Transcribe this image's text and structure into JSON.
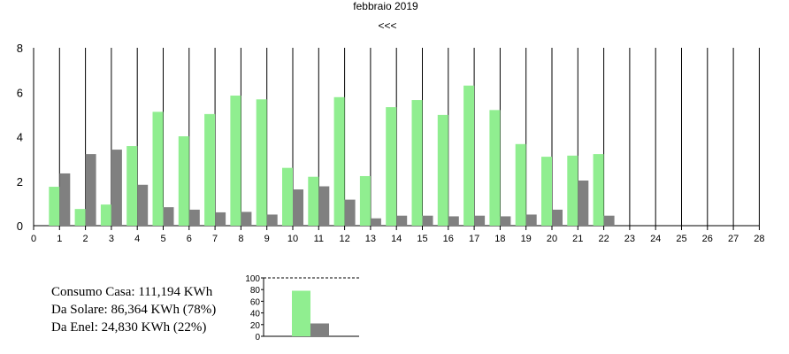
{
  "header": {
    "title": "febbraio 2019",
    "prev_label": "<<<"
  },
  "colors": {
    "solar": "#90ee90",
    "enel": "#808080",
    "axis": "#000000"
  },
  "chart_data": [
    {
      "type": "bar",
      "ylim": [
        0,
        8
      ],
      "y_ticks": [
        0,
        2,
        4,
        6,
        8
      ],
      "x_ticks": [
        0,
        1,
        2,
        3,
        4,
        5,
        6,
        7,
        8,
        9,
        10,
        11,
        12,
        13,
        14,
        15,
        16,
        17,
        18,
        19,
        20,
        21,
        22,
        23,
        24,
        25,
        26,
        27,
        28
      ],
      "categories": [
        1,
        2,
        3,
        4,
        5,
        6,
        7,
        8,
        9,
        10,
        11,
        12,
        13,
        14,
        15,
        16,
        17,
        18,
        19,
        20,
        21,
        22
      ],
      "series": [
        {
          "values": [
            1.75,
            0.75,
            0.95,
            3.58,
            5.12,
            4.02,
            5.02,
            5.85,
            5.68,
            2.6,
            2.2,
            5.78,
            2.23,
            5.33,
            5.65,
            4.98,
            6.3,
            5.2,
            3.67,
            3.1,
            3.15,
            3.22
          ]
        },
        {
          "values": [
            2.35,
            3.22,
            3.42,
            1.84,
            0.83,
            0.72,
            0.6,
            0.62,
            0.5,
            1.63,
            1.77,
            1.17,
            0.33,
            0.45,
            0.45,
            0.42,
            0.45,
            0.42,
            0.5,
            0.72,
            2.03,
            0.45
          ]
        }
      ],
      "grid": false
    },
    {
      "type": "bar",
      "ylim": [
        0,
        100
      ],
      "y_ticks": [
        0,
        20,
        40,
        60,
        80,
        100
      ],
      "series": [
        {
          "values": [
            78
          ]
        },
        {
          "values": [
            22
          ]
        }
      ]
    }
  ],
  "summary": {
    "consumo": "Consumo Casa: 111,194 KWh",
    "solare": "Da Solare: 86,364 KWh (78%)",
    "enel": "Da Enel: 24,830 KWh (22%)"
  }
}
